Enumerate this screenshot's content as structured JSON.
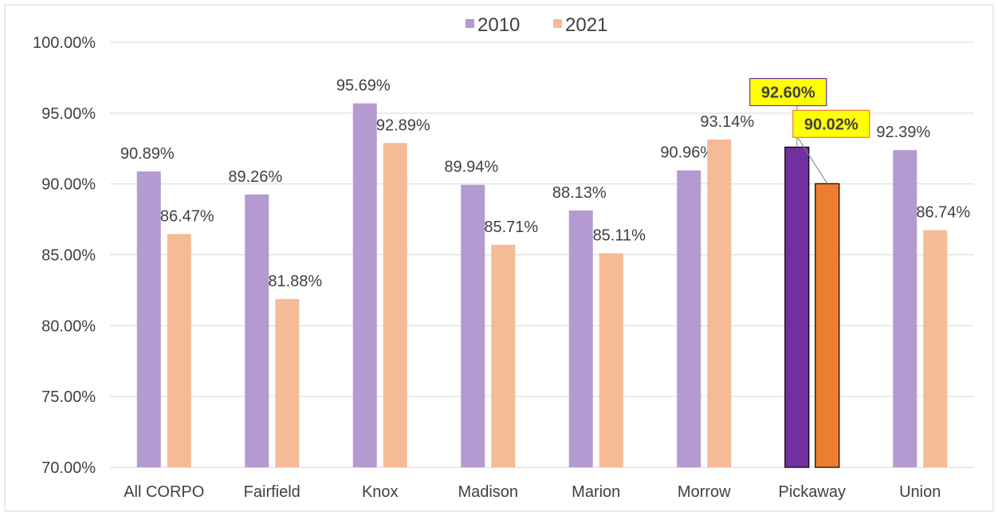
{
  "chart_data": {
    "type": "bar",
    "title": "",
    "xlabel": "",
    "ylabel": "",
    "ylim": [
      70,
      100
    ],
    "ytick_values": [
      70,
      75,
      80,
      85,
      90,
      95,
      100
    ],
    "ytick_labels": [
      "70.00%",
      "75.00%",
      "80.00%",
      "85.00%",
      "90.00%",
      "95.00%",
      "100.00%"
    ],
    "grid": true,
    "legend_position": "top-center",
    "categories": [
      "All CORPO",
      "Fairfield",
      "Knox",
      "Madison",
      "Marion",
      "Morrow",
      "Pickaway",
      "Union"
    ],
    "series": [
      {
        "name": "2010",
        "color": "#B49AD0",
        "highlight_color": "#7030A0",
        "values": [
          90.89,
          89.26,
          95.69,
          89.94,
          88.13,
          90.96,
          92.6,
          92.39
        ],
        "labels": [
          "90.89%",
          "89.26%",
          "95.69%",
          "89.94%",
          "88.13%",
          "90.96%",
          "92.60%",
          "92.39%"
        ]
      },
      {
        "name": "2021",
        "color": "#F5BB96",
        "highlight_color": "#ED7D31",
        "values": [
          86.47,
          81.88,
          92.89,
          85.71,
          85.11,
          93.14,
          90.02,
          86.74
        ],
        "labels": [
          "86.47%",
          "81.88%",
          "92.89%",
          "85.71%",
          "85.11%",
          "93.14%",
          "90.02%",
          "86.74%"
        ]
      }
    ],
    "highlighted_category": "Pickaway",
    "callout_fill": "#FFFF00"
  }
}
